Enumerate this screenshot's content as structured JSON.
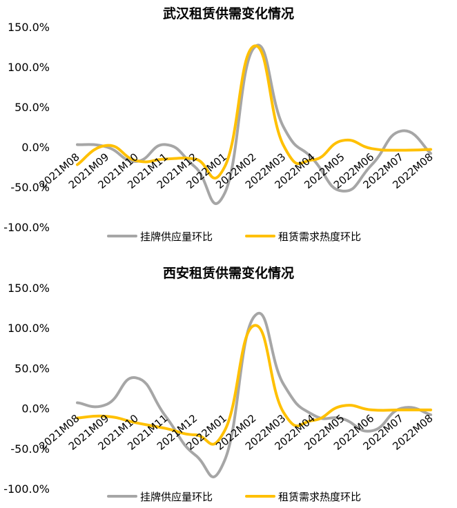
{
  "chart_data": [
    {
      "type": "line",
      "title": "武汉租赁供需变化情况",
      "categories": [
        "2021M08",
        "2021M09",
        "2021M10",
        "2021M11",
        "2021M12",
        "2022M01",
        "2022M02",
        "2022M03",
        "2022M04",
        "2022M05",
        "2022M06",
        "2022M07",
        "2022M08"
      ],
      "ylim": [
        -100,
        150
      ],
      "yticks": [
        "150.0%",
        "100.0%",
        "50.0%",
        "0.0%",
        "-50.0%",
        "-100.0%"
      ],
      "grid": false,
      "legend_position": "bottom",
      "series": [
        {
          "name": "挂牌供应量环比",
          "color": "#a6a6a6",
          "values": [
            3,
            0,
            -18,
            3,
            -25,
            -58,
            124,
            25,
            -15,
            -55,
            -22,
            20,
            -8
          ]
        },
        {
          "name": "租赁需求热度环比",
          "color": "#ffc000",
          "values": [
            -22,
            2,
            -17,
            -15,
            -15,
            -25,
            126,
            2,
            -16,
            8,
            -2,
            -4,
            -3
          ]
        }
      ]
    },
    {
      "type": "line",
      "title": "西安租赁供需变化情况",
      "categories": [
        "2021M08",
        "2021M09",
        "2021M10",
        "2021M11",
        "2021M12",
        "2022M01",
        "2022M02",
        "2022M03",
        "2022M04",
        "2022M05",
        "2022M06",
        "2022M07",
        "2022M08"
      ],
      "ylim": [
        -100,
        150
      ],
      "yticks": [
        "150.0%",
        "100.0%",
        "50.0%",
        "0.0%",
        "-50.0%",
        "-100.0%"
      ],
      "grid": false,
      "legend_position": "bottom",
      "series": [
        {
          "name": "挂牌供应量环比",
          "color": "#a6a6a6",
          "values": [
            7,
            5,
            38,
            -10,
            -58,
            -65,
            114,
            30,
            -8,
            -13,
            -28,
            0,
            -8
          ]
        },
        {
          "name": "租赁需求热度环比",
          "color": "#ffc000",
          "values": [
            -12,
            -10,
            -18,
            -25,
            -33,
            -28,
            103,
            -5,
            -15,
            3,
            -2,
            -2,
            -2
          ]
        }
      ]
    }
  ]
}
